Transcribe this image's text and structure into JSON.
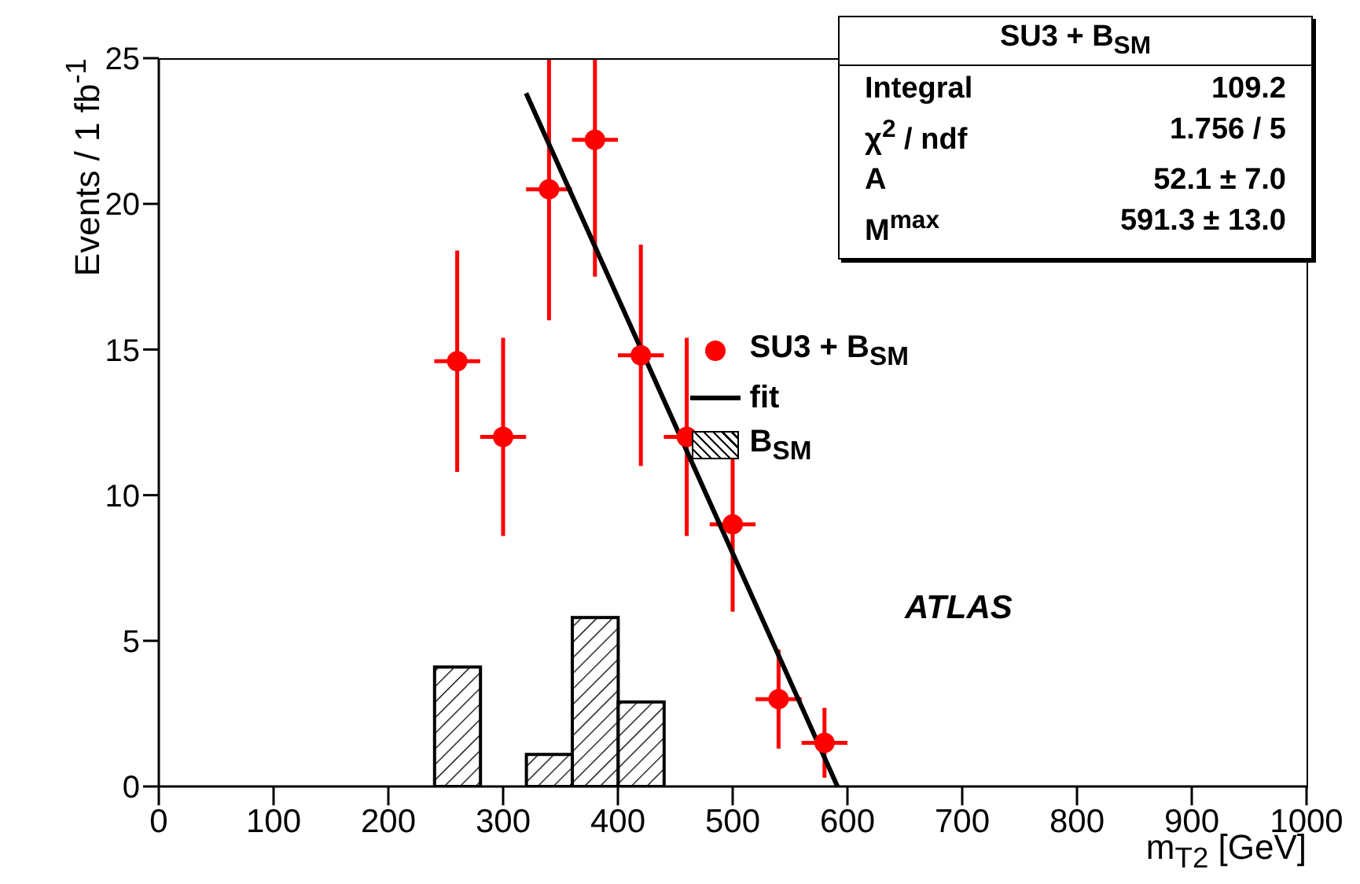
{
  "chart_data": {
    "type": "scatter",
    "xlabel": "m$_{T2}$ [GeV]",
    "ylabel": "Events / 1 fb$^{-1}$",
    "xlim": [
      0,
      1000
    ],
    "xticks": [
      0,
      100,
      200,
      300,
      400,
      500,
      600,
      700,
      800,
      900,
      1000
    ],
    "ylim": [
      0,
      25
    ],
    "yticks": [
      0,
      5,
      10,
      15,
      20,
      25
    ],
    "grid": false,
    "legend": "center right",
    "series": [
      {
        "name": "SU3 + B$_{SM}$",
        "color": "#ff0000",
        "marker": "circle",
        "x": [
          260,
          300,
          340,
          380,
          420,
          460,
          500,
          540,
          580
        ],
        "values": [
          14.6,
          12.0,
          20.5,
          22.2,
          14.8,
          12.0,
          9.0,
          3.0,
          1.5
        ],
        "errors": [
          3.8,
          3.4,
          [
            16.0,
            25
          ],
          [
            17.5,
            25
          ],
          3.8,
          3.4,
          3.0,
          1.7,
          1.2
        ],
        "xerrors": [
          20,
          20,
          20,
          20,
          20,
          20,
          20,
          20,
          20
        ]
      },
      {
        "type": "line",
        "name": "fit",
        "color": "#000000",
        "marker": "none",
        "x": [
          320,
          591.3
        ],
        "values": [
          23.8,
          0
        ]
      },
      {
        "type": "histogram",
        "name": "B$_{SM}$",
        "color": "#000000",
        "bins": [
          240,
          280,
          320,
          360,
          400,
          440
        ],
        "values": [
          4.1,
          0,
          1.1,
          5.8,
          2.9
        ]
      }
    ],
    "annotations": [
      "SU3 + B$_{SM}$",
      "Integral",
      "109.2",
      "χ$^{2}$ / ndf",
      "1.756 / 5",
      "A",
      "52.1 ± 7.0",
      "M$^{max}$",
      "591.3 ± 13.0",
      "ATLAS"
    ]
  }
}
